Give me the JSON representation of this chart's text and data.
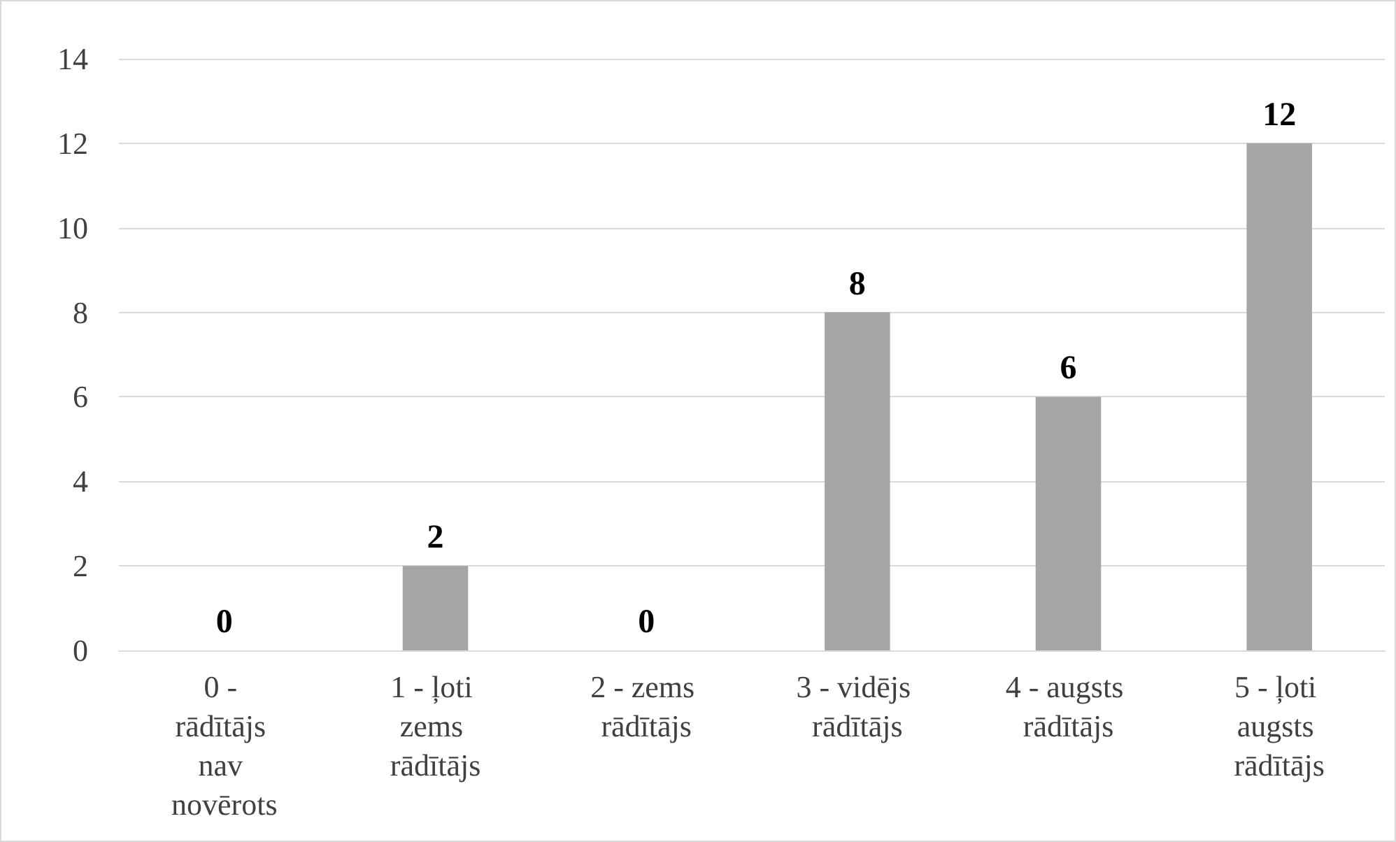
{
  "chart_data": {
    "type": "bar",
    "categories": [
      "0 - rādītājs nav novērots",
      "1 - ļoti zems rādītājs",
      "2 - zems rādītājs",
      "3 - vidējs rādītājs",
      "4 - augsts rādītājs",
      "5 - ļoti augsts rādītājs"
    ],
    "values": [
      0,
      2,
      0,
      8,
      6,
      12
    ],
    "color": "#a5a5a5",
    "ylim": [
      0,
      14
    ],
    "yticks": [
      0,
      2,
      4,
      6,
      8,
      10,
      12,
      14
    ],
    "grid": "y",
    "data_labels": true
  }
}
